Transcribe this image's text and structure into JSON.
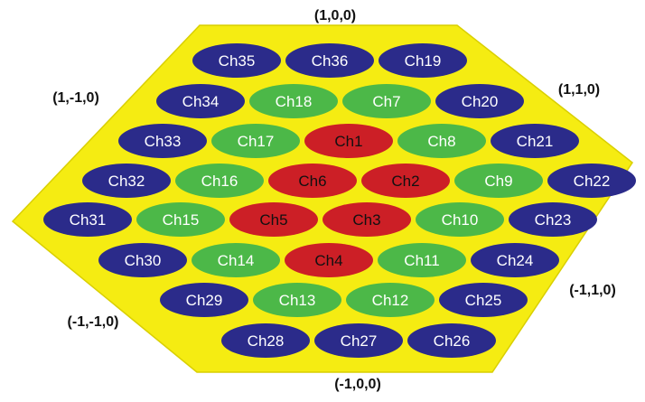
{
  "colors": {
    "background": "#ffffff",
    "hexagon_fill": "#f5ec12",
    "hexagon_stroke": "#d9cf00",
    "outer": "#2b2b8a",
    "middle": "#4cb848",
    "inner": "#cc1f26",
    "text_light": "#ffffff",
    "text_dark": "#111111"
  },
  "corners": {
    "top": "(1,0,0)",
    "upper_left": "(1,-1,0)",
    "upper_right": "(1,1,0)",
    "lower_left": "(-1,-1,0)",
    "lower_right": "(-1,1,0)",
    "bottom": "(-1,0,0)"
  },
  "rows": [
    [
      [
        "Ch35",
        "outer"
      ],
      [
        "Ch36",
        "outer"
      ],
      [
        "Ch19",
        "outer"
      ]
    ],
    [
      [
        "Ch34",
        "outer"
      ],
      [
        "Ch18",
        "middle"
      ],
      [
        "Ch7",
        "middle"
      ],
      [
        "Ch20",
        "outer"
      ]
    ],
    [
      [
        "Ch33",
        "outer"
      ],
      [
        "Ch17",
        "middle"
      ],
      [
        "Ch1",
        "inner"
      ],
      [
        "Ch8",
        "middle"
      ],
      [
        "Ch21",
        "outer"
      ]
    ],
    [
      [
        "Ch32",
        "outer"
      ],
      [
        "Ch16",
        "middle"
      ],
      [
        "Ch6",
        "inner"
      ],
      [
        "Ch2",
        "inner"
      ],
      [
        "Ch9",
        "middle"
      ],
      [
        "Ch22",
        "outer"
      ]
    ],
    [
      [
        "Ch31",
        "outer"
      ],
      [
        "Ch15",
        "middle"
      ],
      [
        "Ch5",
        "inner"
      ],
      [
        "Ch3",
        "inner"
      ],
      [
        "Ch10",
        "middle"
      ],
      [
        "Ch23",
        "outer"
      ]
    ],
    [
      [
        "Ch30",
        "outer"
      ],
      [
        "Ch14",
        "middle"
      ],
      [
        "Ch4",
        "inner"
      ],
      [
        "Ch11",
        "middle"
      ],
      [
        "Ch24",
        "outer"
      ]
    ],
    [
      [
        "Ch29",
        "outer"
      ],
      [
        "Ch13",
        "middle"
      ],
      [
        "Ch12",
        "middle"
      ],
      [
        "Ch25",
        "outer"
      ]
    ],
    [
      [
        "Ch28",
        "outer"
      ],
      [
        "Ch27",
        "outer"
      ],
      [
        "Ch26",
        "outer"
      ]
    ]
  ]
}
